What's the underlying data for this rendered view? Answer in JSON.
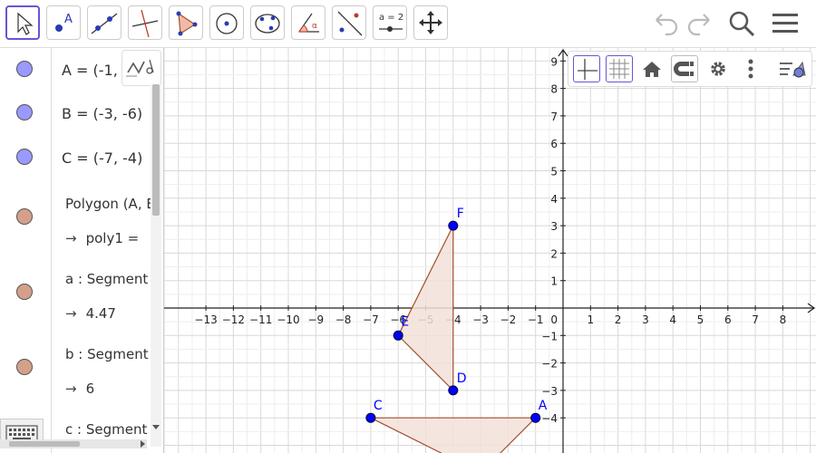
{
  "toolbar": {
    "tools": [
      {
        "name": "move-tool",
        "label": ""
      },
      {
        "name": "point-tool",
        "label": "A"
      },
      {
        "name": "line-tool",
        "label": ""
      },
      {
        "name": "perpendicular-tool",
        "label": ""
      },
      {
        "name": "polygon-tool",
        "label": ""
      },
      {
        "name": "circle-tool",
        "label": ""
      },
      {
        "name": "conic-tool",
        "label": ""
      },
      {
        "name": "angle-tool",
        "label": "α"
      },
      {
        "name": "reflect-tool",
        "label": ""
      },
      {
        "name": "slider-tool",
        "label": "a = 2"
      },
      {
        "name": "move-view-tool",
        "label": ""
      }
    ]
  },
  "algebra": {
    "items": [
      {
        "text": "A = (-1,"
      },
      {
        "text": "B = (-3, -6)"
      },
      {
        "text": "C = (-7, -4)"
      },
      {
        "text": "Polygon (A, B",
        "value": "poly1 ="
      },
      {
        "text": "a : Segment (",
        "value": "4.47"
      },
      {
        "text": "b : Segment (",
        "value": "6"
      },
      {
        "text": "c : Segment ("
      }
    ]
  },
  "colors": {
    "point_fill": "#9999ff",
    "polygon_dot": "#d4a08a",
    "polygon_stroke": "#a0522d",
    "polygon_fill": "#f3e1d9",
    "point_blue": "#0000ff",
    "accent": "#6557d2"
  },
  "graph": {
    "x_ticks": [
      "−13",
      "−12",
      "−11",
      "−10",
      "−9",
      "−8",
      "−7",
      "−6",
      "−5",
      "−4",
      "−3",
      "−2",
      "−1",
      "1",
      "2",
      "3",
      "4",
      "5",
      "6",
      "7",
      "8"
    ],
    "y_ticks": [
      "9",
      "8",
      "7",
      "6",
      "5",
      "4",
      "3",
      "2",
      "1",
      "−1",
      "−2",
      "−3",
      "−4"
    ],
    "origin_label": "0",
    "points": [
      {
        "label": "F",
        "x": -4,
        "y": 3
      },
      {
        "label": "E",
        "x": -6,
        "y": -1
      },
      {
        "label": "D",
        "x": -4,
        "y": -3
      },
      {
        "label": "C",
        "x": -7,
        "y": -4
      },
      {
        "label": "A",
        "x": -1,
        "y": -4
      }
    ],
    "poly_def": [
      [
        -4,
        3
      ],
      [
        -6,
        -1
      ],
      [
        -4,
        -3
      ]
    ],
    "poly_abc": [
      [
        -7,
        -4
      ],
      [
        -1,
        -4
      ],
      [
        -3,
        -6
      ]
    ]
  }
}
